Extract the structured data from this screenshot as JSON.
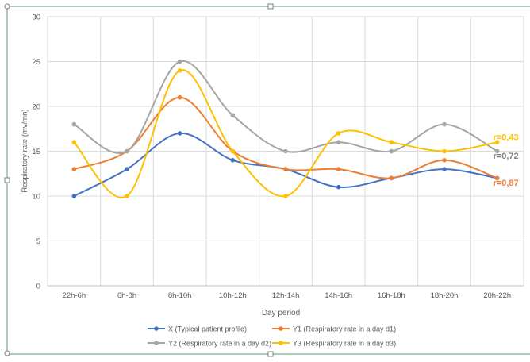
{
  "chart_data": {
    "type": "line",
    "smooth": true,
    "xlabel": "Day period",
    "ylabel": "Respiratory rate (mv/mn)",
    "ylim": [
      0,
      30
    ],
    "yticks": [
      0,
      5,
      10,
      15,
      20,
      25,
      30
    ],
    "grid": true,
    "legend_position": "bottom",
    "categories": [
      "22h-6h",
      "6h-8h",
      "8h-10h",
      "10h-12h",
      "12h-14h",
      "14h-16h",
      "16h-18h",
      "18h-20h",
      "20h-22h"
    ],
    "series": [
      {
        "name": "X (Typical patient profile)",
        "color": "#4472C4",
        "values": [
          10,
          13,
          17,
          14,
          13,
          11,
          12,
          13,
          12
        ]
      },
      {
        "name": "Y1 (Respiratory rate in a day d1)",
        "color": "#ED7D31",
        "values": [
          13,
          15,
          21,
          15,
          13,
          13,
          12,
          14,
          12
        ]
      },
      {
        "name": "Y2 (Respiratory rate in a day d2)",
        "color": "#A5A5A5",
        "values": [
          18,
          15,
          25,
          19,
          15,
          16,
          15,
          18,
          15
        ]
      },
      {
        "name": "Y3 (Respiratory rate in a day d3)",
        "color": "#FFC000",
        "values": [
          16,
          10,
          24,
          15,
          10,
          17,
          16,
          15,
          16
        ]
      }
    ],
    "annotations": [
      {
        "text": "r=0,43",
        "color": "#FFC000",
        "x": "20h-22h",
        "y": 16.6
      },
      {
        "text": "r=0,72",
        "color": "#7F7F7F",
        "x": "20h-22h",
        "y": 14.5
      },
      {
        "text": "r=0,87",
        "color": "#ED7D31",
        "x": "20h-22h",
        "y": 11.5
      }
    ]
  }
}
